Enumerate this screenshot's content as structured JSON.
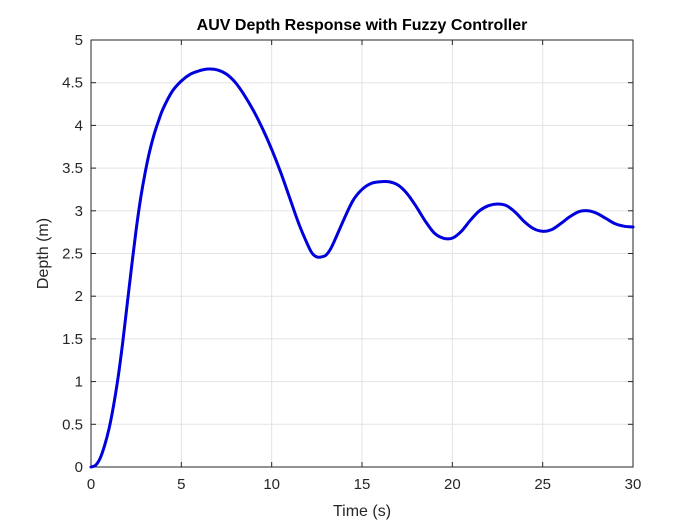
{
  "chart_data": {
    "type": "line",
    "title": "AUV Depth Response with Fuzzy Controller",
    "xlabel": "Time (s)",
    "ylabel": "Depth (m)",
    "xlim": [
      0,
      30
    ],
    "ylim": [
      0,
      5
    ],
    "xticks": [
      0,
      5,
      10,
      15,
      20,
      25,
      30
    ],
    "xtick_labels": [
      "0",
      "5",
      "10",
      "15",
      "20",
      "25",
      "30"
    ],
    "yticks": [
      0,
      0.5,
      1,
      1.5,
      2,
      2.5,
      3,
      3.5,
      4,
      4.5,
      5
    ],
    "ytick_labels": [
      "0",
      "0.5",
      "1",
      "1.5",
      "2",
      "2.5",
      "3",
      "3.5",
      "4",
      "4.5",
      "5"
    ],
    "grid": true,
    "legend": "none",
    "colors": {
      "series": "#0000dd",
      "grid": "#e3e3e3",
      "axes": "#262626"
    },
    "series": [
      {
        "name": "",
        "x": [
          0,
          0.25,
          0.5,
          0.75,
          1,
          1.25,
          1.5,
          1.75,
          2,
          2.25,
          2.5,
          2.75,
          3,
          3.25,
          3.5,
          3.75,
          4,
          4.5,
          5,
          5.5,
          6,
          6.5,
          7,
          7.5,
          8,
          8.5,
          9,
          9.5,
          10,
          10.5,
          11,
          11.5,
          12,
          12.25,
          12.5,
          12.75,
          13,
          13.25,
          13.5,
          14,
          14.5,
          15,
          15.5,
          16,
          16.5,
          17,
          17.5,
          18,
          18.5,
          19,
          19.5,
          20,
          20.5,
          21,
          21.5,
          22,
          22.5,
          23,
          23.5,
          24,
          24.5,
          25,
          25.5,
          26,
          26.5,
          27,
          27.5,
          28,
          28.5,
          29,
          29.5,
          30
        ],
        "y": [
          0,
          0.02,
          0.1,
          0.25,
          0.45,
          0.72,
          1.05,
          1.45,
          1.9,
          2.35,
          2.78,
          3.15,
          3.45,
          3.7,
          3.9,
          4.06,
          4.2,
          4.4,
          4.52,
          4.6,
          4.64,
          4.66,
          4.65,
          4.6,
          4.5,
          4.35,
          4.17,
          3.96,
          3.72,
          3.45,
          3.15,
          2.85,
          2.6,
          2.5,
          2.46,
          2.46,
          2.48,
          2.55,
          2.66,
          2.9,
          3.12,
          3.25,
          3.32,
          3.34,
          3.34,
          3.3,
          3.2,
          3.05,
          2.88,
          2.74,
          2.68,
          2.68,
          2.76,
          2.89,
          3.0,
          3.06,
          3.08,
          3.06,
          2.98,
          2.87,
          2.79,
          2.76,
          2.78,
          2.85,
          2.93,
          2.99,
          3.0,
          2.97,
          2.91,
          2.85,
          2.82,
          2.81
        ]
      }
    ]
  }
}
